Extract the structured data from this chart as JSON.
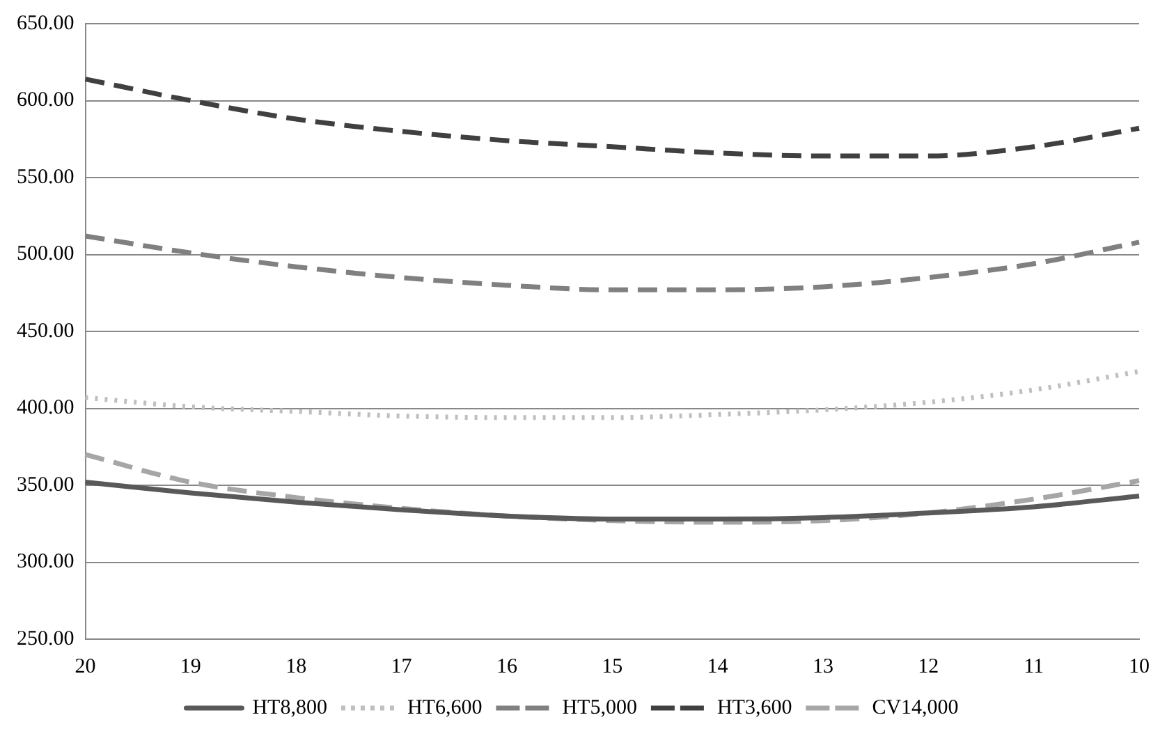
{
  "chart_data": {
    "type": "line",
    "categories": [
      "20",
      "19",
      "18",
      "17",
      "16",
      "15",
      "14",
      "13",
      "12",
      "11",
      "10"
    ],
    "series": [
      {
        "name": "HT8,800",
        "color": "#595959",
        "line_style": "solid",
        "values": [
          352,
          345,
          339,
          334,
          330,
          328,
          328,
          329,
          332,
          336,
          343
        ]
      },
      {
        "name": "HT6,600",
        "color": "#bfbfbf",
        "line_style": "dotted",
        "values": [
          407,
          401,
          398,
          395,
          394,
          394,
          396,
          399,
          404,
          412,
          424
        ]
      },
      {
        "name": "HT5,000",
        "color": "#808080",
        "line_style": "dashed",
        "values": [
          512,
          501,
          492,
          485,
          480,
          477,
          477,
          479,
          485,
          494,
          508
        ]
      },
      {
        "name": "HT3,600",
        "color": "#404040",
        "line_style": "dashed",
        "values": [
          614,
          600,
          588,
          580,
          574,
          570,
          566,
          564,
          564,
          570,
          582
        ]
      },
      {
        "name": "CV14,000",
        "color": "#a6a6a6",
        "line_style": "dashed",
        "values": [
          370,
          352,
          342,
          335,
          330,
          327,
          326,
          327,
          332,
          341,
          353
        ]
      }
    ],
    "ylim": [
      250,
      650
    ],
    "yticks": [
      {
        "value": 250,
        "label": "250.00"
      },
      {
        "value": 300,
        "label": "300.00"
      },
      {
        "value": 350,
        "label": "350.00"
      },
      {
        "value": 400,
        "label": "400.00"
      },
      {
        "value": 450,
        "label": "450.00"
      },
      {
        "value": 500,
        "label": "500.00"
      },
      {
        "value": 550,
        "label": "550.00"
      },
      {
        "value": 600,
        "label": "600.00"
      },
      {
        "value": 650,
        "label": "650.00"
      }
    ],
    "grid": "y",
    "legend": "bottom",
    "marker": "none"
  }
}
